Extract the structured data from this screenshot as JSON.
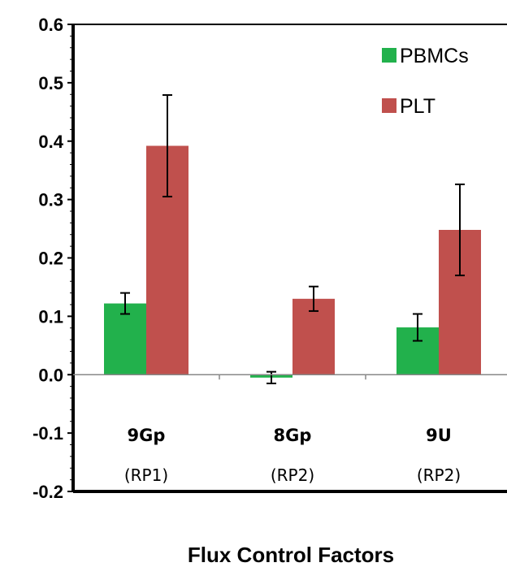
{
  "chart_data": {
    "type": "bar",
    "categories": [
      "9Gp",
      "8Gp",
      "9U"
    ],
    "category_sublabels": [
      "(RP1)",
      "(RP2)",
      "(RP2)"
    ],
    "series": [
      {
        "name": "PBMCs",
        "color": "#22b14c",
        "values": [
          0.122,
          -0.005,
          0.081
        ],
        "errors": [
          0.018,
          0.01,
          0.023
        ]
      },
      {
        "name": "PLT",
        "color": "#c0504d",
        "values": [
          0.392,
          0.13,
          0.248
        ],
        "errors": [
          0.087,
          0.021,
          0.078
        ]
      }
    ],
    "xlabel": "Flux Control Factors",
    "ylim": [
      -0.2,
      0.6
    ],
    "yticks": [
      "-0.2",
      "-0.1",
      "0.0",
      "0.1",
      "0.2",
      "0.3",
      "0.4",
      "0.5",
      "0.6"
    ],
    "legend": "top-right"
  }
}
